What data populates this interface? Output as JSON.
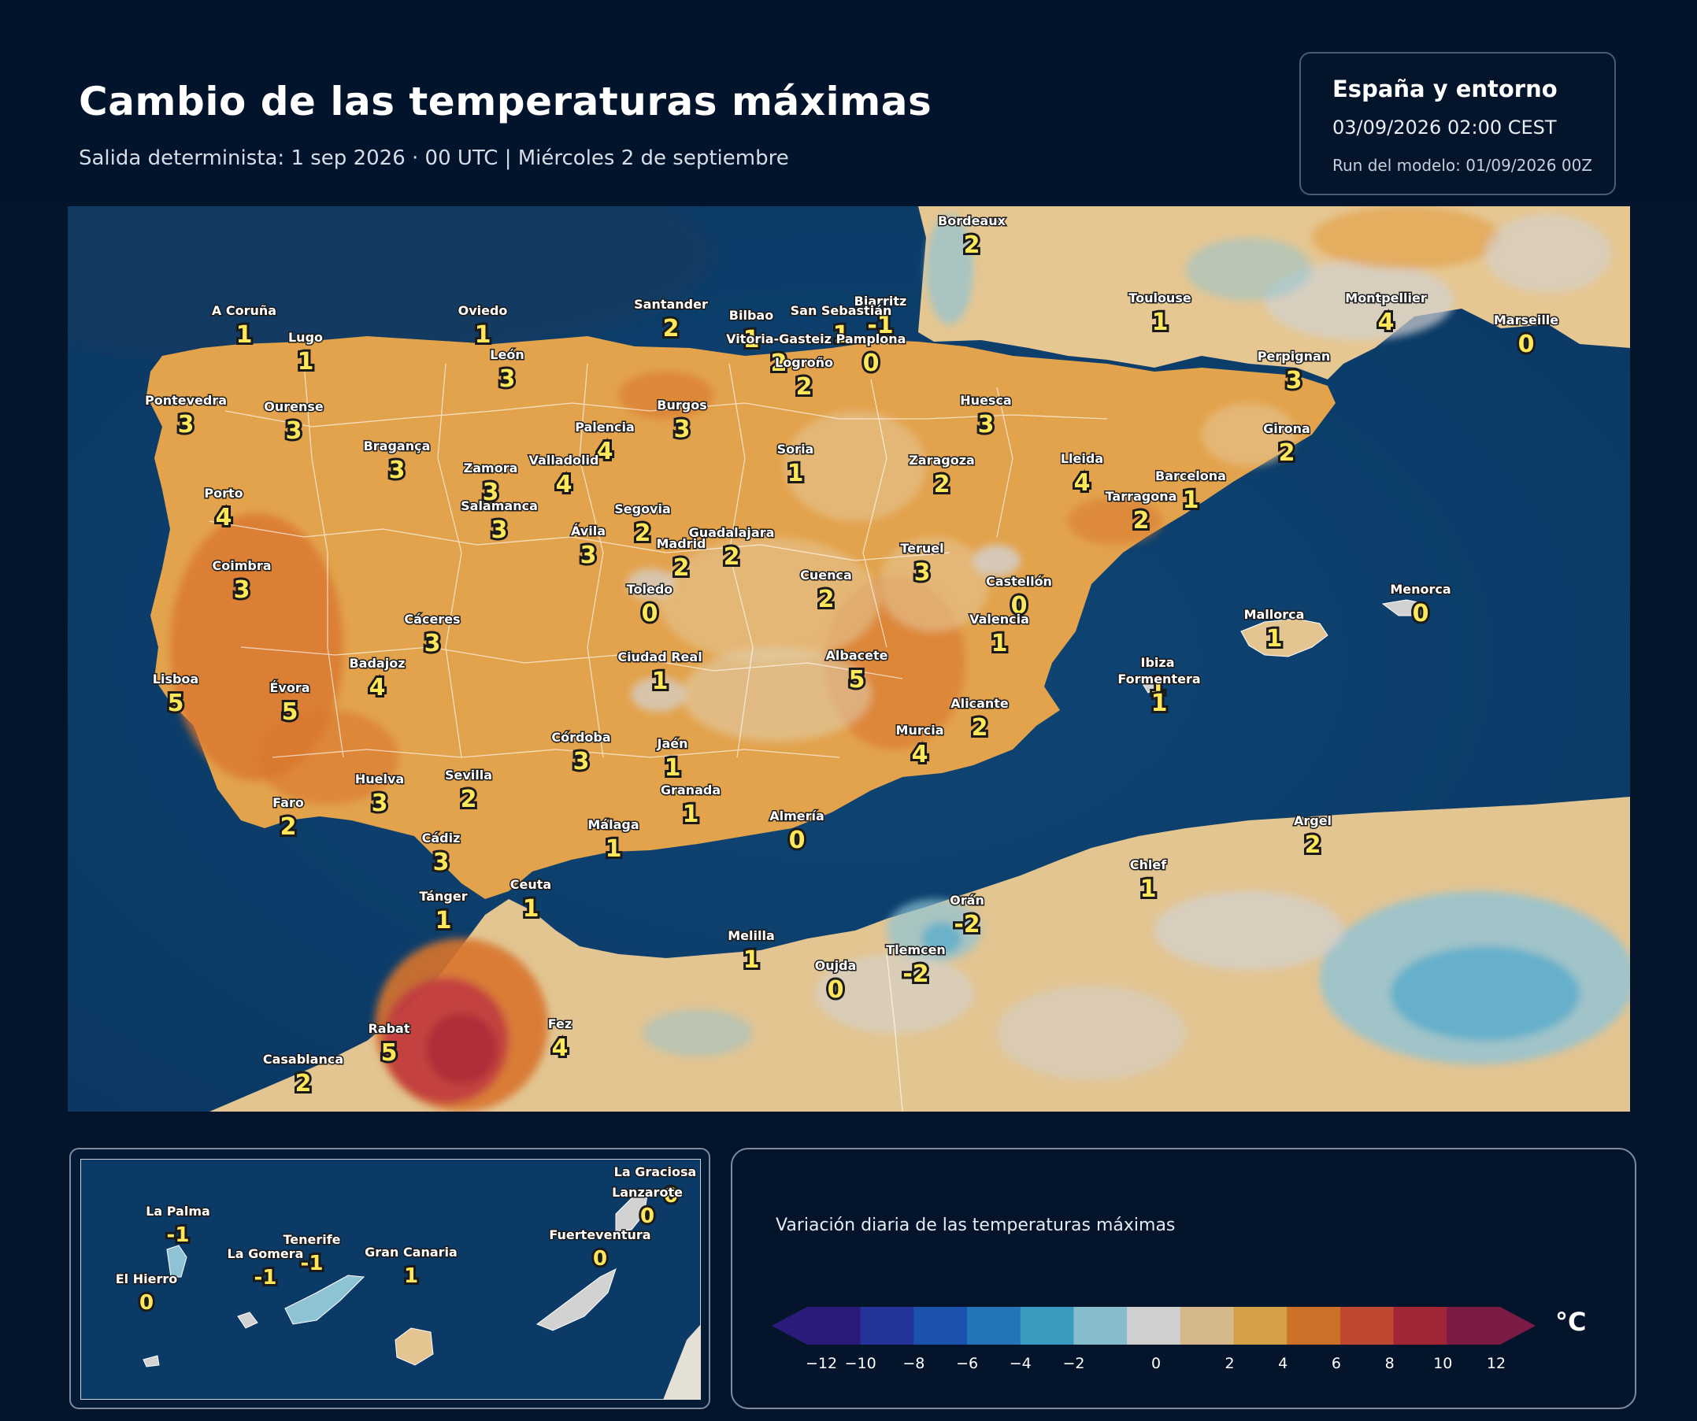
{
  "header": {
    "title": "Cambio de las temperaturas máximas",
    "subtitle": "Salida determinista: 1 sep 2026 · 00 UTC  |  Miércoles 2 de septiembre"
  },
  "info_box": {
    "region": "España y entorno",
    "datetime": "03/09/2026  02:00 CEST",
    "run": "Run del modelo: 01/09/2026 00Z"
  },
  "colors": {
    "sea": "#0d3b66",
    "warm_light": "#e5c48f",
    "warm": "#e3a34d",
    "hot": "#d8742e",
    "very_hot": "#c0393f",
    "neutral": "#d2d2d2",
    "cool": "#8ec3d6",
    "value_text": "#ffe75a"
  },
  "cities": [
    {
      "name": "Bordeaux",
      "value": "2"
    },
    {
      "name": "A Coruña",
      "value": "1"
    },
    {
      "name": "Oviedo",
      "value": "1"
    },
    {
      "name": "Santander",
      "value": "2"
    },
    {
      "name": "Biarritz",
      "value": "-1"
    },
    {
      "name": "Bilbao",
      "value": "1"
    },
    {
      "name": "San Sebastián",
      "value": "1"
    },
    {
      "name": "Toulouse",
      "value": "1"
    },
    {
      "name": "Montpellier",
      "value": "4"
    },
    {
      "name": "Marseille",
      "value": "0"
    },
    {
      "name": "Lugo",
      "value": "1"
    },
    {
      "name": "Vitoria-Gasteiz",
      "value": "2"
    },
    {
      "name": "Pamplona",
      "value": "0"
    },
    {
      "name": "León",
      "value": "3"
    },
    {
      "name": "Logroño",
      "value": "2"
    },
    {
      "name": "Perpignan",
      "value": "3"
    },
    {
      "name": "Pontevedra",
      "value": "3"
    },
    {
      "name": "Ourense",
      "value": "3"
    },
    {
      "name": "Burgos",
      "value": "3"
    },
    {
      "name": "Huesca",
      "value": "3"
    },
    {
      "name": "Palencia",
      "value": "4"
    },
    {
      "name": "Girona",
      "value": "2"
    },
    {
      "name": "Bragança",
      "value": "3"
    },
    {
      "name": "Soria",
      "value": "1"
    },
    {
      "name": "Valladolid",
      "value": "4"
    },
    {
      "name": "Zaragoza",
      "value": "2"
    },
    {
      "name": "Lleida",
      "value": "4"
    },
    {
      "name": "Zamora",
      "value": "3"
    },
    {
      "name": "Barcelona",
      "value": "1"
    },
    {
      "name": "Porto",
      "value": "4"
    },
    {
      "name": "Tarragona",
      "value": "2"
    },
    {
      "name": "Salamanca",
      "value": "3"
    },
    {
      "name": "Segovia",
      "value": "2"
    },
    {
      "name": "Ávila",
      "value": "3"
    },
    {
      "name": "Guadalajara",
      "value": "2"
    },
    {
      "name": "Madrid",
      "value": "2"
    },
    {
      "name": "Teruel",
      "value": "3"
    },
    {
      "name": "Coimbra",
      "value": "3"
    },
    {
      "name": "Cuenca",
      "value": "2"
    },
    {
      "name": "Toledo",
      "value": "0"
    },
    {
      "name": "Castellón",
      "value": "0"
    },
    {
      "name": "Menorca",
      "value": "0"
    },
    {
      "name": "Cáceres",
      "value": "3"
    },
    {
      "name": "Mallorca",
      "value": "1"
    },
    {
      "name": "Valencia",
      "value": "1"
    },
    {
      "name": "Badajoz",
      "value": "4"
    },
    {
      "name": "Ciudad Real",
      "value": "1"
    },
    {
      "name": "Albacete",
      "value": "5"
    },
    {
      "name": "Ibiza",
      "value": "1"
    },
    {
      "name": "Lisboa",
      "value": "5"
    },
    {
      "name": "Formentera",
      "value": "1"
    },
    {
      "name": "Évora",
      "value": "5"
    },
    {
      "name": "Alicante",
      "value": "2"
    },
    {
      "name": "Murcia",
      "value": "4"
    },
    {
      "name": "Córdoba",
      "value": "3"
    },
    {
      "name": "Jaén",
      "value": "1"
    },
    {
      "name": "Huelva",
      "value": "3"
    },
    {
      "name": "Sevilla",
      "value": "2"
    },
    {
      "name": "Granada",
      "value": "1"
    },
    {
      "name": "Faro",
      "value": "2"
    },
    {
      "name": "Almería",
      "value": "0"
    },
    {
      "name": "Málaga",
      "value": "1"
    },
    {
      "name": "Cádiz",
      "value": "3"
    },
    {
      "name": "Argel",
      "value": "2"
    },
    {
      "name": "Chlef",
      "value": "1"
    },
    {
      "name": "Ceuta",
      "value": "1"
    },
    {
      "name": "Tánger",
      "value": "1"
    },
    {
      "name": "Orán",
      "value": "-2"
    },
    {
      "name": "Melilla",
      "value": "1"
    },
    {
      "name": "Tlemcen",
      "value": "-2"
    },
    {
      "name": "Oujda",
      "value": "0"
    },
    {
      "name": "Rabat",
      "value": "5"
    },
    {
      "name": "Fez",
      "value": "4"
    },
    {
      "name": "Casablanca",
      "value": "2"
    }
  ],
  "canary_islands": [
    {
      "name": "La Graciosa",
      "value": "0"
    },
    {
      "name": "Lanzarote",
      "value": "0"
    },
    {
      "name": "La Palma",
      "value": "-1"
    },
    {
      "name": "Fuerteventura",
      "value": "0"
    },
    {
      "name": "Tenerife",
      "value": "-1"
    },
    {
      "name": "La Gomera",
      "value": "-1"
    },
    {
      "name": "Gran Canaria",
      "value": "1"
    },
    {
      "name": "El Hierro",
      "value": "0"
    }
  ],
  "legend": {
    "title": "Variación diaria de las temperaturas máximas",
    "unit": "°C",
    "ticks": [
      "−12",
      "−10",
      "−8",
      "−6",
      "−4",
      "−2",
      "0",
      "2",
      "4",
      "6",
      "8",
      "10",
      "12"
    ],
    "colors": [
      "#2a1b7a",
      "#243399",
      "#1b52b0",
      "#2474b8",
      "#3a9bc0",
      "#87bccd",
      "#cfcfcf",
      "#d6b98a",
      "#d39f47",
      "#cc7128",
      "#bf4830",
      "#a02537",
      "#7a1a45"
    ]
  }
}
